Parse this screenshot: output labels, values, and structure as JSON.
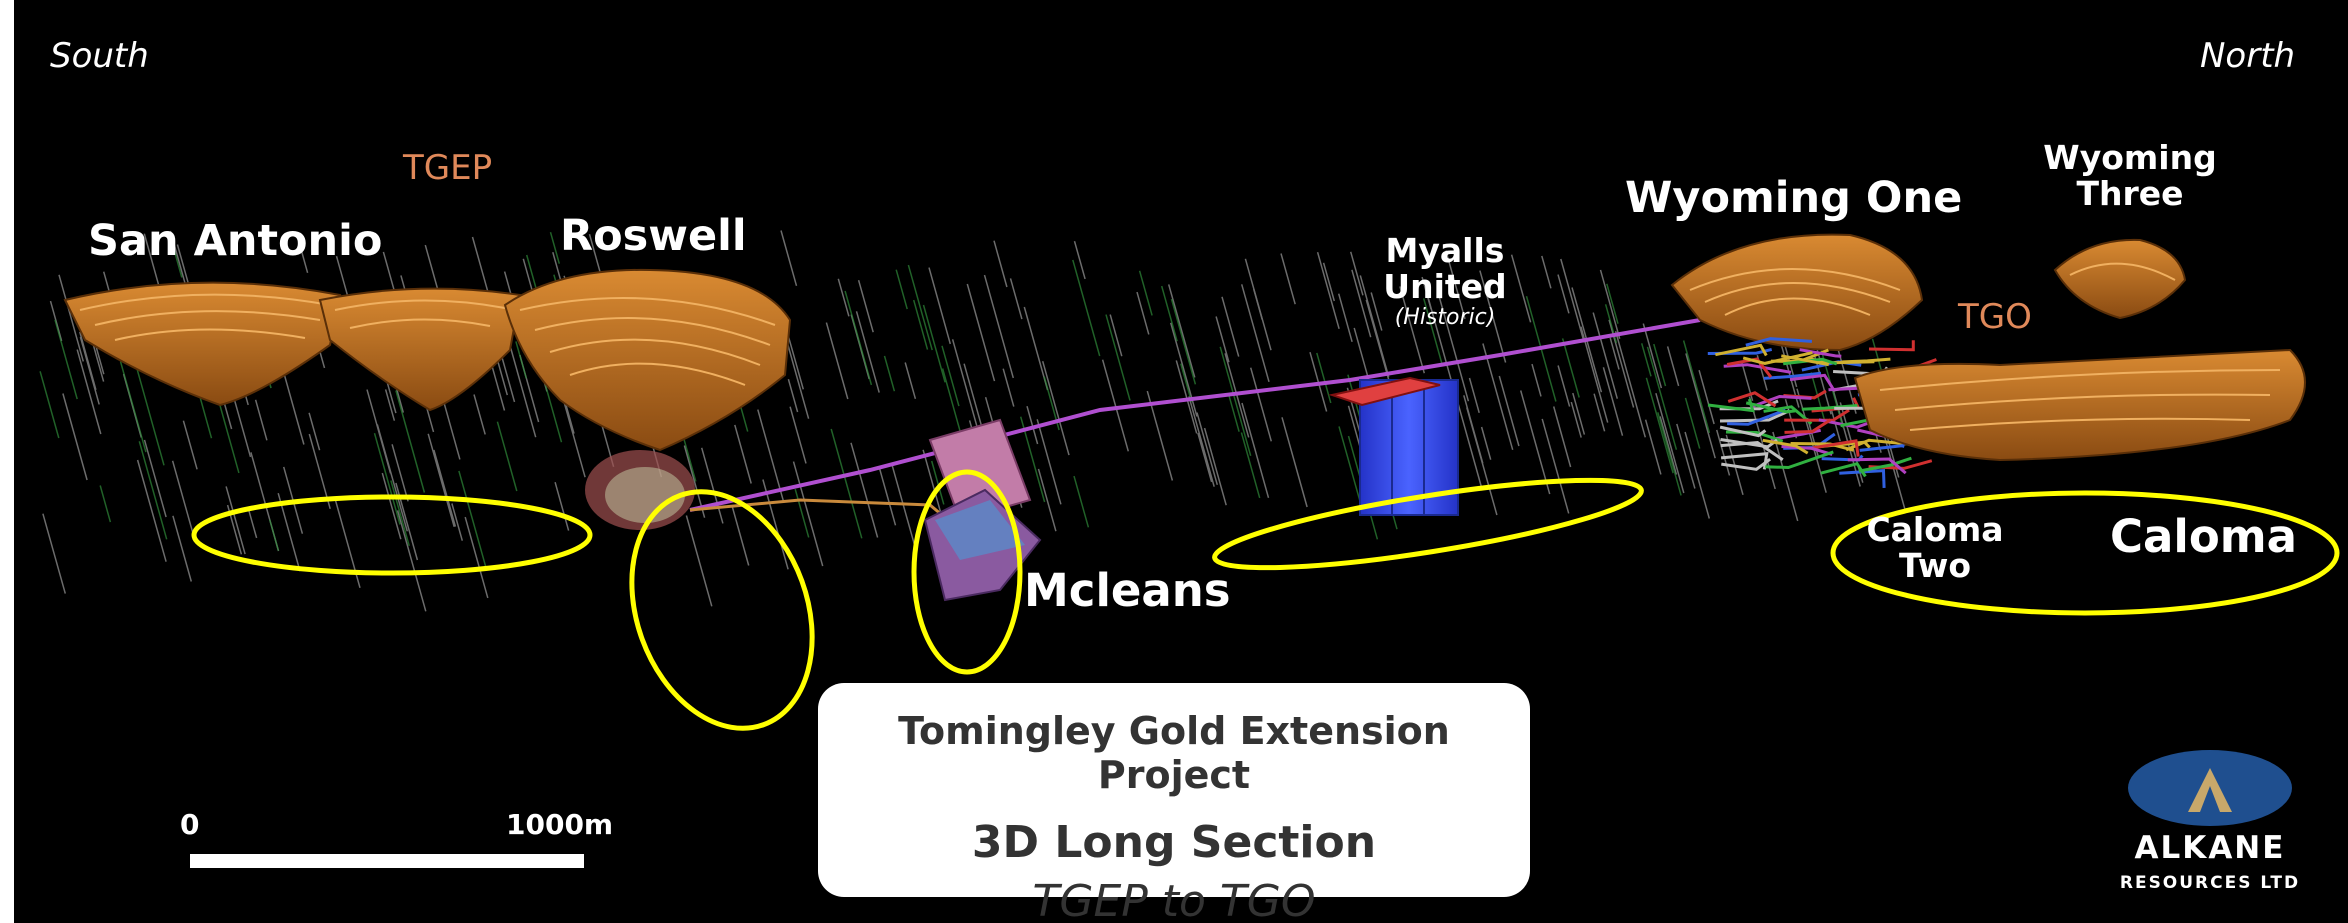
{
  "directions": {
    "south": "South",
    "north": "North"
  },
  "zones": {
    "tgep": "TGEP",
    "tgo": "TGO"
  },
  "deposits": {
    "san_antonio": "San Antonio",
    "roswell": "Roswell",
    "myalls_line1": "Myalls",
    "myalls_line2": "United",
    "myalls_note": "(Historic)",
    "wyoming_one": "Wyoming One",
    "wyoming_three_line1": "Wyoming",
    "wyoming_three_line2": "Three",
    "mcleans": "Mcleans",
    "caloma_two_line1": "Caloma",
    "caloma_two_line2": "Two",
    "caloma": "Caloma"
  },
  "title_box": {
    "line1": "Tomingley Gold Extension Project",
    "line2": "3D Long Section",
    "line3": "TGEP to TGO"
  },
  "scale": {
    "start": "0",
    "end": "1000m"
  },
  "logo": {
    "name": "ALKANE",
    "subtitle": "RESOURCES LTD"
  },
  "colors": {
    "background": "#000000",
    "pit": "#b8681c",
    "highlight_ellipse": "#ffff00",
    "zone_label": "#e0895a",
    "decline": "#b04fd0",
    "mcleans_body": "#c27ca8",
    "myalls_body": "#3346e0",
    "logo_blue": "#1f4f8f",
    "logo_gold": "#c8a86a"
  }
}
